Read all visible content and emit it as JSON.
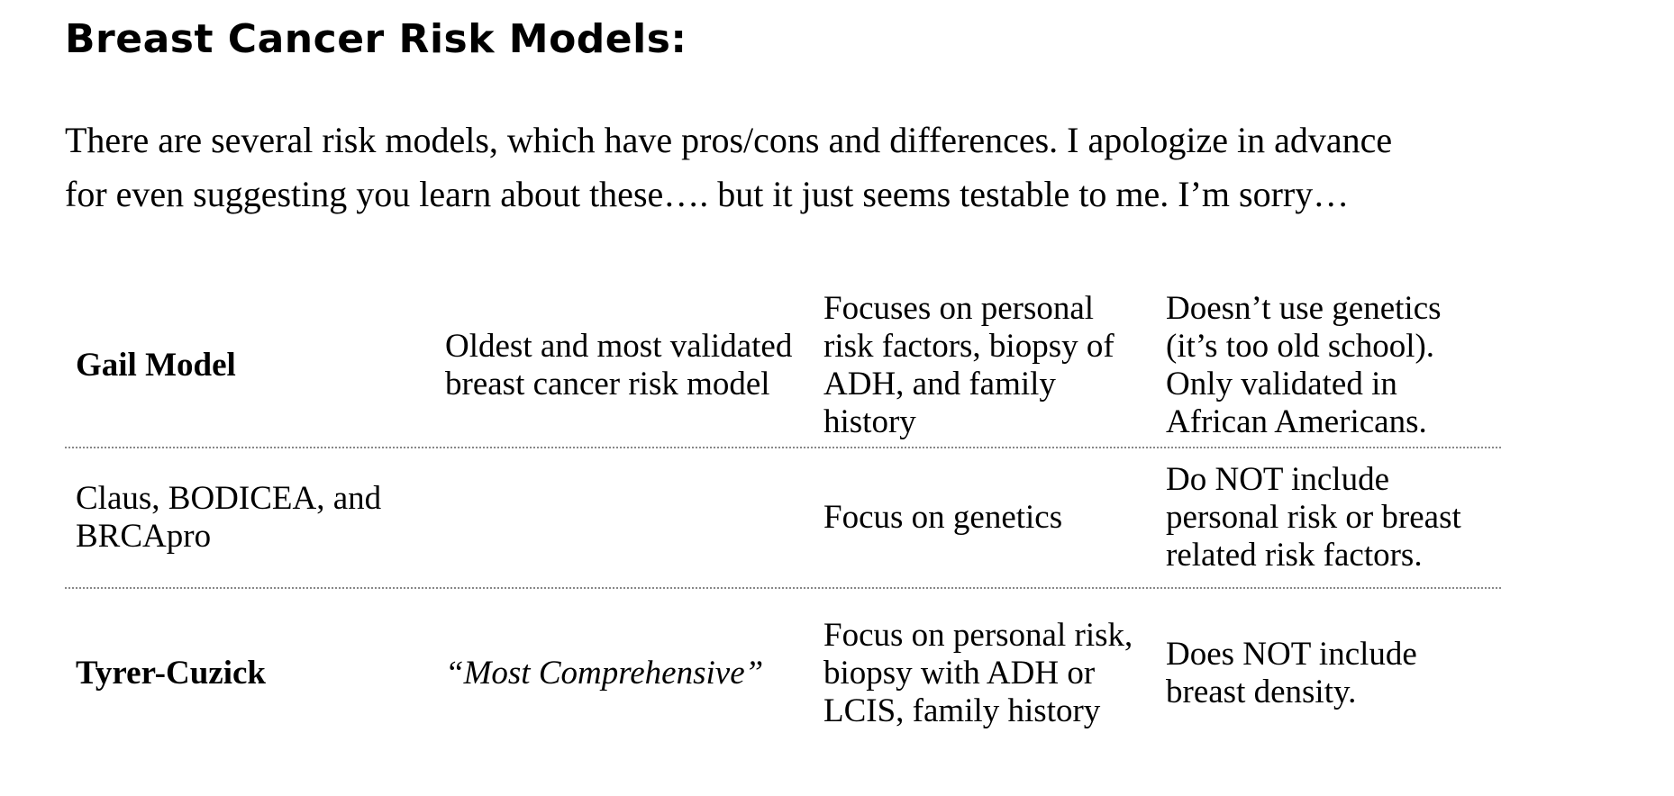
{
  "title": "Breast Cancer Risk Models:",
  "intro": {
    "line1": "There are several risk models, which have pros/cons and differences.  I apologize in advance",
    "line2": "for even suggesting you learn about these…. but it just seems testable to me.  I’m sorry…"
  },
  "rows": [
    {
      "model": "Gail Model",
      "description": "Oldest and most validated breast cancer risk model",
      "focus": "Focuses on personal risk factors, biopsy of ADH, and family history",
      "limitations": "Doesn’t use genetics (it’s too old school). Only validated in African Americans."
    },
    {
      "model": "Claus, BODICEA, and BRCApro",
      "description": "",
      "focus": "Focus on genetics",
      "limitations": "Do NOT include personal risk or breast related risk factors."
    },
    {
      "model": "Tyrer-Cuzick",
      "description": "“Most Comprehensive”",
      "focus": "Focus on personal risk, biopsy with ADH or LCIS, family history",
      "limitations": "Does NOT include breast density."
    }
  ]
}
